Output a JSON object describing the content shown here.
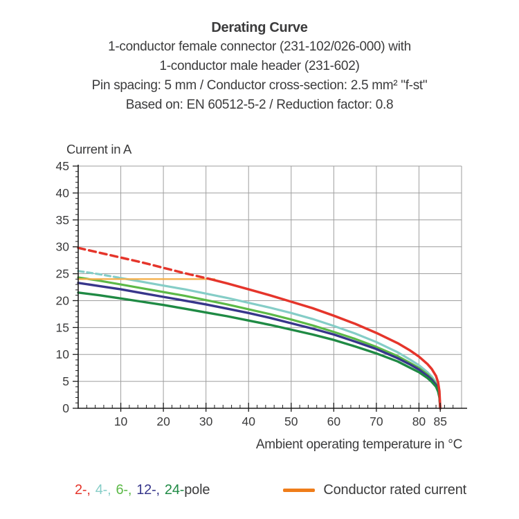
{
  "header": {
    "title": "Derating Curve",
    "subtitle_lines": [
      "1-conductor female connector (231-102/026-000) with",
      "1-conductor male header (231-602)",
      "Pin spacing: 5 mm / Conductor cross-section: 2.5 mm² \"f-st\"",
      "Based on: EN 60512-5-2 / Reduction factor: 0.8"
    ]
  },
  "chart_data": {
    "type": "line",
    "title": "Derating Curve",
    "xlabel": "Ambient operating temperature in °C",
    "ylabel": "Current in A",
    "xlim": [
      0,
      90
    ],
    "ylim": [
      0,
      45
    ],
    "x_major_ticks": [
      10,
      20,
      30,
      40,
      50,
      60,
      70,
      80,
      85
    ],
    "x_minor_step": 2,
    "x_gridlines": [
      10,
      20,
      30,
      40,
      50,
      60,
      70,
      80,
      90
    ],
    "y_major_ticks": [
      0,
      5,
      10,
      15,
      20,
      25,
      30,
      35,
      40,
      45
    ],
    "y_minor_step": 1,
    "y_gridlines": [
      5,
      10,
      15,
      20,
      25,
      30,
      35,
      40,
      45
    ],
    "grid": true,
    "legend_position": "bottom",
    "grid_color": "#9e9e9e",
    "axis_color": "#1c1c1c",
    "tick_label_color": "#3b3b3c",
    "series": [
      {
        "name": "4-pole",
        "color": "#85cdc7",
        "width": 3.2,
        "dashed_until_x": 10,
        "dash": "8 5",
        "points": [
          [
            0,
            25.5
          ],
          [
            5,
            24.9
          ],
          [
            10,
            24.2
          ],
          [
            15,
            23.5
          ],
          [
            20,
            22.8
          ],
          [
            25,
            22.1
          ],
          [
            30,
            21.3
          ],
          [
            35,
            20.5
          ],
          [
            40,
            19.6
          ],
          [
            45,
            18.7
          ],
          [
            50,
            17.7
          ],
          [
            55,
            16.6
          ],
          [
            60,
            15.3
          ],
          [
            65,
            13.9
          ],
          [
            70,
            12.3
          ],
          [
            75,
            10.4
          ],
          [
            78,
            9.0
          ],
          [
            80,
            8.0
          ],
          [
            82,
            6.7
          ],
          [
            83,
            5.9
          ],
          [
            84,
            4.8
          ],
          [
            84.5,
            3.8
          ],
          [
            84.8,
            2.5
          ],
          [
            85,
            0
          ]
        ]
      },
      {
        "name": "6-pole",
        "color": "#5cb947",
        "width": 3.2,
        "dashed_until_x": null,
        "dash": null,
        "points": [
          [
            0,
            24.3
          ],
          [
            5,
            23.7
          ],
          [
            10,
            23.0
          ],
          [
            15,
            22.3
          ],
          [
            20,
            21.6
          ],
          [
            25,
            20.9
          ],
          [
            30,
            20.1
          ],
          [
            35,
            19.3
          ],
          [
            40,
            18.4
          ],
          [
            45,
            17.5
          ],
          [
            50,
            16.5
          ],
          [
            55,
            15.4
          ],
          [
            60,
            14.2
          ],
          [
            65,
            12.9
          ],
          [
            70,
            11.4
          ],
          [
            75,
            9.7
          ],
          [
            78,
            8.4
          ],
          [
            80,
            7.5
          ],
          [
            82,
            6.3
          ],
          [
            83,
            5.5
          ],
          [
            84,
            4.5
          ],
          [
            84.5,
            3.5
          ],
          [
            84.8,
            2.3
          ],
          [
            85,
            0
          ]
        ]
      },
      {
        "name": "12-pole",
        "color": "#37368b",
        "width": 3.4,
        "dashed_until_x": null,
        "dash": null,
        "points": [
          [
            0,
            23.3
          ],
          [
            5,
            22.7
          ],
          [
            10,
            22.1
          ],
          [
            15,
            21.4
          ],
          [
            20,
            20.7
          ],
          [
            25,
            20.0
          ],
          [
            30,
            19.3
          ],
          [
            35,
            18.5
          ],
          [
            40,
            17.7
          ],
          [
            45,
            16.8
          ],
          [
            50,
            15.8
          ],
          [
            55,
            14.8
          ],
          [
            60,
            13.7
          ],
          [
            65,
            12.4
          ],
          [
            70,
            11.0
          ],
          [
            75,
            9.3
          ],
          [
            78,
            8.1
          ],
          [
            80,
            7.2
          ],
          [
            82,
            6.0
          ],
          [
            83,
            5.3
          ],
          [
            84,
            4.3
          ],
          [
            84.5,
            3.3
          ],
          [
            84.8,
            2.2
          ],
          [
            85,
            0
          ]
        ]
      },
      {
        "name": "24-pole",
        "color": "#1f8a44",
        "width": 3.4,
        "dashed_until_x": null,
        "dash": null,
        "points": [
          [
            0,
            21.5
          ],
          [
            5,
            21.0
          ],
          [
            10,
            20.4
          ],
          [
            15,
            19.8
          ],
          [
            20,
            19.2
          ],
          [
            25,
            18.5
          ],
          [
            30,
            17.8
          ],
          [
            35,
            17.1
          ],
          [
            40,
            16.3
          ],
          [
            45,
            15.5
          ],
          [
            50,
            14.6
          ],
          [
            55,
            13.7
          ],
          [
            60,
            12.7
          ],
          [
            65,
            11.5
          ],
          [
            70,
            10.2
          ],
          [
            75,
            8.7
          ],
          [
            78,
            7.5
          ],
          [
            80,
            6.7
          ],
          [
            82,
            5.6
          ],
          [
            83,
            4.9
          ],
          [
            84,
            4.0
          ],
          [
            84.5,
            3.1
          ],
          [
            84.8,
            2.0
          ],
          [
            85,
            0
          ]
        ]
      },
      {
        "name": "Conductor rated current",
        "color": "#f5b04d",
        "width": 2.4,
        "dashed_until_x": null,
        "dash": null,
        "points": [
          [
            0,
            24
          ],
          [
            32,
            24
          ]
        ]
      },
      {
        "name": "2-pole",
        "color": "#e5352b",
        "width": 3.5,
        "dashed_until_x": 31,
        "dash": "10 6",
        "points": [
          [
            0,
            29.8
          ],
          [
            5,
            28.9
          ],
          [
            10,
            28.0
          ],
          [
            15,
            27.1
          ],
          [
            20,
            26.1
          ],
          [
            25,
            25.1
          ],
          [
            31,
            24.0
          ],
          [
            35,
            23.2
          ],
          [
            40,
            22.1
          ],
          [
            45,
            21.0
          ],
          [
            50,
            19.8
          ],
          [
            55,
            18.6
          ],
          [
            60,
            17.2
          ],
          [
            65,
            15.7
          ],
          [
            70,
            14.0
          ],
          [
            75,
            12.1
          ],
          [
            78,
            10.7
          ],
          [
            80,
            9.6
          ],
          [
            82,
            8.2
          ],
          [
            83,
            7.3
          ],
          [
            84,
            6.0
          ],
          [
            84.5,
            4.8
          ],
          [
            84.8,
            3.2
          ],
          [
            85,
            0
          ]
        ]
      }
    ]
  },
  "legend": {
    "pole_items": [
      {
        "label": "2-,",
        "color": "#e5352b"
      },
      {
        "label": "4-,",
        "color": "#85cdc7"
      },
      {
        "label": "6-,",
        "color": "#5cb947"
      },
      {
        "label": "12-,",
        "color": "#37368b"
      },
      {
        "label": "24-",
        "color": "#1f8a44"
      }
    ],
    "pole_suffix": "pole",
    "rated": {
      "label": "Conductor rated current",
      "swatch_color": "#ef7d1a"
    }
  }
}
